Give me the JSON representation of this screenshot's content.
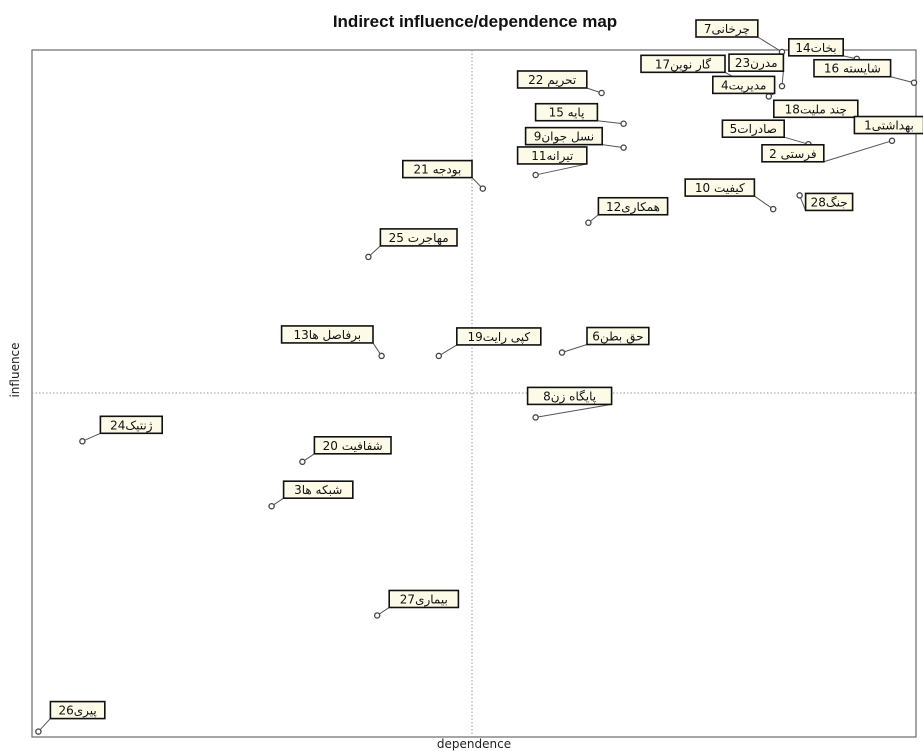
{
  "chart_data": {
    "type": "scatter",
    "title": "Indirect influence/dependence map",
    "xlabel": "dependence",
    "ylabel": "influence",
    "xlim": [
      0,
      100
    ],
    "ylim": [
      0,
      100
    ],
    "grid": false,
    "quadrant_lines": {
      "x": 50,
      "y": 50
    },
    "points": [
      {
        "label": "پیری26",
        "x": 0.5,
        "y": 0.5
      },
      {
        "label": "ژنتیک24",
        "x": 5.5,
        "y": 43
      },
      {
        "label": "شبکه ها3",
        "x": 27,
        "y": 33.5
      },
      {
        "label": "شفافیت 20",
        "x": 30.5,
        "y": 40
      },
      {
        "label": "بیماری27",
        "x": 39,
        "y": 17.5
      },
      {
        "label": "برفاصل ها13",
        "x": 39.5,
        "y": 55.5
      },
      {
        "label": "مهاجرت 25",
        "x": 38,
        "y": 70
      },
      {
        "label": "بودجه 21",
        "x": 51,
        "y": 80
      },
      {
        "label": "کپی رایت19",
        "x": 46,
        "y": 55.5
      },
      {
        "label": "پایگاه زن8",
        "x": 57,
        "y": 46.5
      },
      {
        "label": "حق بطن6",
        "x": 60,
        "y": 56
      },
      {
        "label": "تیرانه11",
        "x": 57,
        "y": 82
      },
      {
        "label": "نسل جوان9",
        "x": 67,
        "y": 86
      },
      {
        "label": "همکاری12",
        "x": 63,
        "y": 75
      },
      {
        "label": "کیفیت 10",
        "x": 84,
        "y": 77
      },
      {
        "label": "تحریم 22",
        "x": 64.5,
        "y": 94
      },
      {
        "label": "پایه 15",
        "x": 67,
        "y": 89.5
      },
      {
        "label": "گار نوین17",
        "x": 80,
        "y": 96
      },
      {
        "label": "چرخانی7",
        "x": 85,
        "y": 100
      },
      {
        "label": "مدیریت4",
        "x": 83.5,
        "y": 93.5
      },
      {
        "label": "مدرن23",
        "x": 85,
        "y": 95
      },
      {
        "label": "چند ملیت18",
        "x": 96,
        "y": 90
      },
      {
        "label": "صادرات5",
        "x": 88,
        "y": 86.5
      },
      {
        "label": "بهداشتی1",
        "x": 98,
        "y": 88.5
      },
      {
        "label": "فرستی 2",
        "x": 97.5,
        "y": 87
      },
      {
        "label": "جنگ28",
        "x": 87,
        "y": 79
      },
      {
        "label": "بخات14",
        "x": 93.5,
        "y": 99
      },
      {
        "label": "شایسته 16",
        "x": 100,
        "y": 95.5
      }
    ]
  }
}
